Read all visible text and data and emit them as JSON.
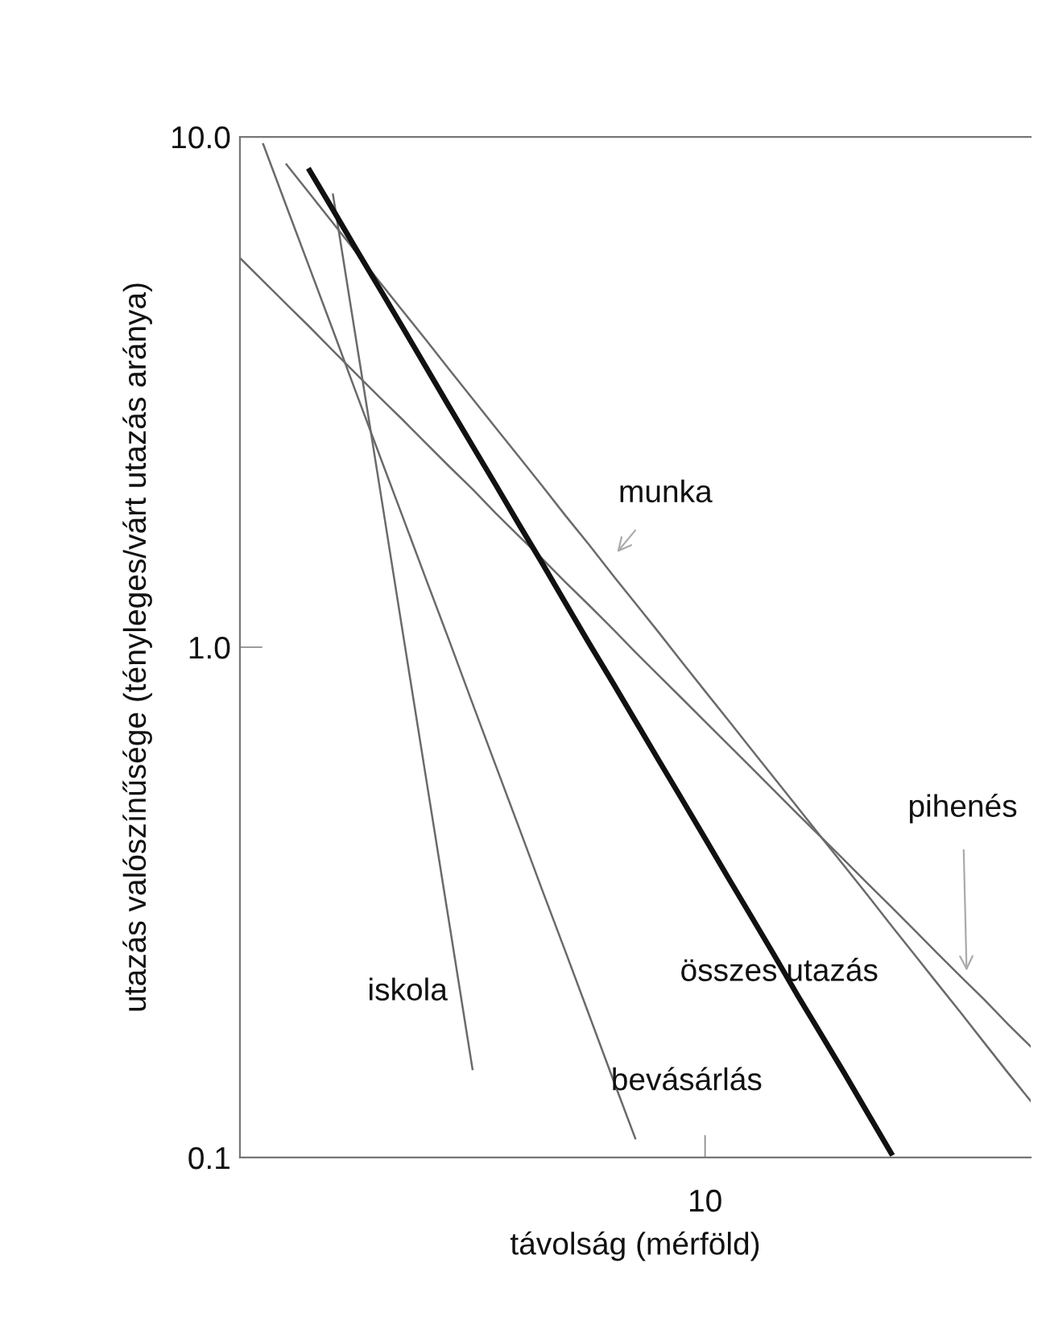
{
  "chart_data": {
    "type": "line",
    "xlabel": "távolság (mérföld)",
    "ylabel": "utazás valószínűsége (tényleges/várt utazás aránya)",
    "log": "y",
    "ylim": [
      0.1,
      10
    ],
    "yticks": [
      {
        "value": 0.1,
        "label": "0.1"
      },
      {
        "value": 1,
        "label": "1.0"
      },
      {
        "value": 10,
        "label": "10.0"
      }
    ],
    "grid": false,
    "marker": "none",
    "line_style": "solid",
    "categories": [
      null,
      null,
      null,
      null,
      null,
      null,
      null,
      null,
      null,
      null,
      null,
      null,
      null,
      null,
      null,
      null,
      null,
      null,
      null,
      null,
      "10",
      null,
      null,
      null,
      null,
      null,
      null,
      null,
      null,
      null,
      null,
      null,
      null,
      null,
      null
    ],
    "series": [
      {
        "color": "#6a6a6a",
        "values": [
          null,
          null,
          8.83,
          7.74,
          6.78,
          5.94,
          5.2,
          4.56,
          4.0,
          3.5,
          3.07,
          2.69,
          2.36,
          2.07,
          1.81,
          1.59,
          1.39,
          1.22,
          1.07,
          0.936,
          0.82,
          0.719,
          0.63,
          0.552,
          0.484,
          0.424,
          0.372,
          0.326,
          0.285,
          0.25,
          0.219,
          0.192,
          0.168,
          0.147,
          0.129
        ]
      },
      {
        "color": "#6a6a6a",
        "values": [
          5.79,
          5.22,
          4.7,
          4.24,
          3.81,
          3.43,
          3.09,
          2.79,
          2.51,
          2.26,
          2.04,
          1.83,
          1.65,
          1.49,
          1.34,
          1.21,
          1.09,
          0.978,
          0.881,
          0.794,
          0.715,
          0.644,
          0.58,
          0.522,
          0.47,
          0.424,
          0.382,
          0.344,
          0.31,
          0.279,
          0.251,
          0.226,
          0.204,
          0.183,
          0.165
        ]
      },
      {
        "color": "#6a6a6a",
        "values": [
          null,
          null,
          null,
          null,
          7.71,
          3.99,
          2.07,
          1.07,
          0.555,
          0.288,
          0.149,
          null,
          null,
          null,
          null,
          null,
          null,
          null,
          null,
          null,
          null,
          null,
          null,
          null,
          null,
          null,
          null,
          null,
          null,
          null,
          null,
          null,
          null,
          null,
          null
        ]
      },
      {
        "color": "#6a6a6a",
        "values": [
          null,
          9.68,
          7.31,
          5.53,
          4.18,
          3.15,
          2.38,
          1.8,
          1.36,
          1.03,
          0.776,
          0.586,
          0.443,
          0.334,
          0.253,
          0.191,
          0.144,
          0.109,
          null,
          null,
          null,
          null,
          null,
          null,
          null,
          null,
          null,
          null,
          null,
          null,
          null,
          null,
          null,
          null,
          null
        ]
      },
      {
        "color": "#111111",
        "values": [
          null,
          null,
          null,
          8.59,
          7.2,
          6.02,
          5.05,
          4.23,
          3.54,
          2.96,
          2.48,
          2.08,
          1.74,
          1.46,
          1.22,
          1.02,
          0.857,
          0.718,
          0.601,
          0.504,
          0.422,
          0.353,
          0.296,
          0.248,
          0.207,
          0.174,
          0.146,
          0.122,
          0.102,
          null,
          null,
          null,
          null,
          null,
          null
        ]
      }
    ],
    "annotations": [
      "munka",
      "pihenés",
      "iskola",
      "összes utazás",
      "bevásárlás"
    ]
  }
}
